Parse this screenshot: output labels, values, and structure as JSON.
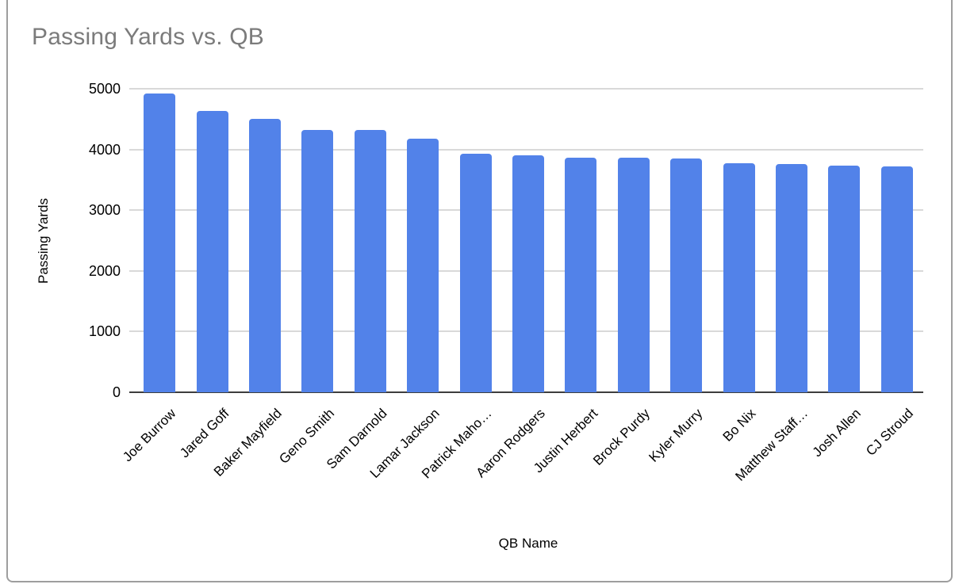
{
  "chart_data": {
    "type": "bar",
    "title": "Passing Yards vs. QB",
    "xlabel": "QB Name",
    "ylabel": "Passing Yards",
    "categories": [
      "Joe Burrow",
      "Jared Goff",
      "Baker Mayfield",
      "Geno Smith",
      "Sam Darnold",
      "Lamar Jackson",
      "Patrick Maho…",
      "Aaron Rodgers",
      "Justin Herbert",
      "Brock Purdy",
      "Kyler Murry",
      "Bo Nix",
      "Matthew Staff…",
      "Josh Allen",
      "CJ Stroud"
    ],
    "values": [
      4918,
      4629,
      4500,
      4320,
      4319,
      4172,
      3928,
      3897,
      3870,
      3864,
      3851,
      3775,
      3762,
      3731,
      3727
    ],
    "y_ticks": [
      0,
      1000,
      2000,
      3000,
      4000,
      5000
    ],
    "ylim": [
      0,
      5000
    ],
    "grid": true,
    "legend": "none",
    "colors": {
      "bar": "#5282e9",
      "grid_line": "#d9d9d9",
      "axis_line": "#3d3d3d",
      "title_text": "#7b7b7b",
      "tick_text": "#000000",
      "frame_border": "#9e9e9e"
    }
  }
}
